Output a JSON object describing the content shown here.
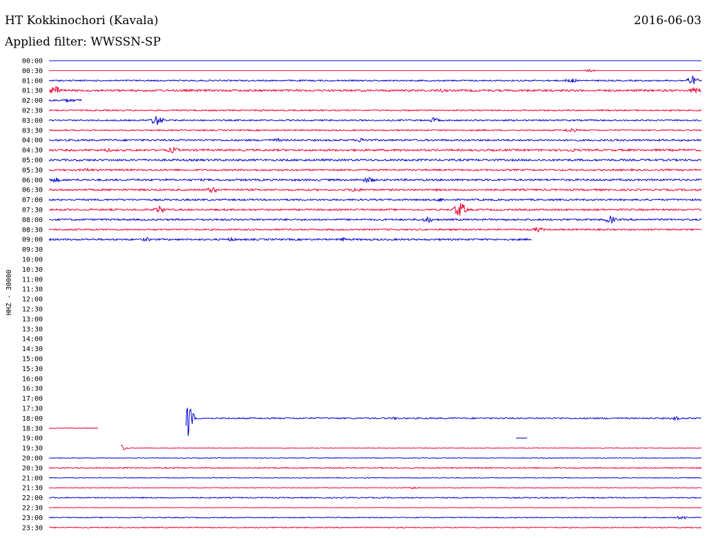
{
  "header": {
    "station": "HT Kokkinochori (Kavala)",
    "date": "2016-06-03",
    "filter": "Applied filter: WWSSN-SP"
  },
  "chart_data": {
    "type": "line",
    "title": "HT Kokkinochori (Kavala)",
    "ylabel": "HHZ - 30000",
    "colors": [
      "#0000cc",
      "#ee0033"
    ],
    "rows": [
      {
        "time": "00:00",
        "x_end": 1.0,
        "amp": 0,
        "events": []
      },
      {
        "time": "00:30",
        "x_end": 1.0,
        "amp": 0,
        "events": [
          [
            0.83,
            2
          ]
        ]
      },
      {
        "time": "01:00",
        "x_end": 1.0,
        "amp": 1,
        "events": [
          [
            0.8,
            4
          ],
          [
            0.985,
            7
          ]
        ]
      },
      {
        "time": "01:30",
        "x_end": 1.0,
        "amp": 1.5,
        "events": [
          [
            0.01,
            7
          ],
          [
            0.38,
            2
          ],
          [
            0.6,
            3
          ],
          [
            0.99,
            5
          ]
        ]
      },
      {
        "time": "02:00",
        "x_end": 0.05,
        "amp": 1.5,
        "events": [
          [
            0.03,
            3
          ]
        ]
      },
      {
        "time": "02:30",
        "x_end": 1.0,
        "amp": 1,
        "events": [
          [
            0.33,
            2
          ]
        ]
      },
      {
        "time": "03:00",
        "x_end": 1.0,
        "amp": 1,
        "events": [
          [
            0.165,
            8
          ],
          [
            0.59,
            4
          ]
        ]
      },
      {
        "time": "03:30",
        "x_end": 1.0,
        "amp": 1,
        "events": [
          [
            0.8,
            4
          ]
        ]
      },
      {
        "time": "04:00",
        "x_end": 1.0,
        "amp": 1.3,
        "events": [
          [
            0.35,
            3
          ],
          [
            0.48,
            4
          ]
        ]
      },
      {
        "time": "04:30",
        "x_end": 1.0,
        "amp": 1.5,
        "events": [
          [
            0.19,
            5
          ],
          [
            0.09,
            3
          ],
          [
            0.8,
            3
          ]
        ]
      },
      {
        "time": "05:00",
        "x_end": 1.0,
        "amp": 1.4,
        "events": []
      },
      {
        "time": "05:30",
        "x_end": 1.0,
        "amp": 1.3,
        "events": [
          [
            0.06,
            3
          ]
        ]
      },
      {
        "time": "06:00",
        "x_end": 1.0,
        "amp": 1.4,
        "events": [
          [
            0.01,
            4
          ],
          [
            0.49,
            5
          ]
        ]
      },
      {
        "time": "06:30",
        "x_end": 1.0,
        "amp": 1.4,
        "events": [
          [
            0.25,
            5
          ],
          [
            0.47,
            4
          ]
        ]
      },
      {
        "time": "07:00",
        "x_end": 1.0,
        "amp": 1.2,
        "events": [
          [
            0.6,
            3
          ]
        ]
      },
      {
        "time": "07:30",
        "x_end": 1.0,
        "amp": 1.3,
        "events": [
          [
            0.17,
            6
          ],
          [
            0.63,
            12
          ]
        ]
      },
      {
        "time": "08:00",
        "x_end": 1.0,
        "amp": 1.3,
        "events": [
          [
            0.58,
            5
          ],
          [
            0.86,
            6
          ]
        ]
      },
      {
        "time": "08:30",
        "x_end": 1.0,
        "amp": 1.2,
        "events": [
          [
            0.75,
            4
          ]
        ]
      },
      {
        "time": "09:00",
        "x_end": 0.74,
        "amp": 1.3,
        "events": [
          [
            0.15,
            3
          ],
          [
            0.28,
            3
          ],
          [
            0.45,
            3
          ]
        ]
      },
      {
        "time": "09:30",
        "x_end": 0,
        "amp": 0,
        "events": []
      },
      {
        "time": "10:00",
        "x_end": 0,
        "amp": 0,
        "events": []
      },
      {
        "time": "10:30",
        "x_end": 0,
        "amp": 0,
        "events": []
      },
      {
        "time": "11:00",
        "x_end": 0,
        "amp": 0,
        "events": []
      },
      {
        "time": "11:30",
        "x_end": 0,
        "amp": 0,
        "events": []
      },
      {
        "time": "12:00",
        "x_end": 0,
        "amp": 0,
        "events": []
      },
      {
        "time": "12:30",
        "x_end": 0,
        "amp": 0,
        "events": []
      },
      {
        "time": "13:00",
        "x_end": 0,
        "amp": 0,
        "events": []
      },
      {
        "time": "13:30",
        "x_end": 0,
        "amp": 0,
        "events": []
      },
      {
        "time": "14:00",
        "x_end": 0,
        "amp": 0,
        "events": []
      },
      {
        "time": "14:30",
        "x_end": 0,
        "amp": 0,
        "events": []
      },
      {
        "time": "15:00",
        "x_end": 0,
        "amp": 0,
        "events": []
      },
      {
        "time": "15:30",
        "x_end": 0,
        "amp": 0,
        "events": []
      },
      {
        "time": "16:00",
        "x_end": 0,
        "amp": 0,
        "events": []
      },
      {
        "time": "16:30",
        "x_end": 0,
        "amp": 0,
        "events": []
      },
      {
        "time": "17:00",
        "x_end": 0,
        "amp": 0,
        "events": []
      },
      {
        "time": "17:30",
        "x_end": 0,
        "amp": 0,
        "events": []
      },
      {
        "time": "18:00",
        "x_start": 0.21,
        "x_end": 1.0,
        "amp": 1,
        "events": [
          [
            0.21,
            36
          ],
          [
            0.53,
            2
          ],
          [
            0.96,
            3
          ]
        ]
      },
      {
        "time": "18:30",
        "x_end": 0.076,
        "amp": 0.6,
        "events": []
      },
      {
        "time": "19:00",
        "x_start": 0.716,
        "x_end": 0.733,
        "amp": 0.5,
        "events": []
      },
      {
        "time": "19:30",
        "x_start": 0.11,
        "x_end": 1.0,
        "amp": 0.5,
        "events": [
          [
            0.11,
            5
          ]
        ]
      },
      {
        "time": "20:00",
        "x_end": 1.0,
        "amp": 0.5,
        "events": []
      },
      {
        "time": "20:30",
        "x_end": 1.0,
        "amp": 0.9,
        "events": []
      },
      {
        "time": "21:00",
        "x_end": 1.0,
        "amp": 0.5,
        "events": []
      },
      {
        "time": "21:30",
        "x_end": 1.0,
        "amp": 0.5,
        "events": [
          [
            0.56,
            2
          ]
        ]
      },
      {
        "time": "22:00",
        "x_end": 1.0,
        "amp": 0.8,
        "events": []
      },
      {
        "time": "22:30",
        "x_end": 1.0,
        "amp": 0.4,
        "events": []
      },
      {
        "time": "23:00",
        "x_end": 1.0,
        "amp": 0.7,
        "events": [
          [
            0.97,
            3
          ]
        ]
      },
      {
        "time": "23:30",
        "x_end": 1.0,
        "amp": 0.8,
        "events": []
      }
    ]
  }
}
